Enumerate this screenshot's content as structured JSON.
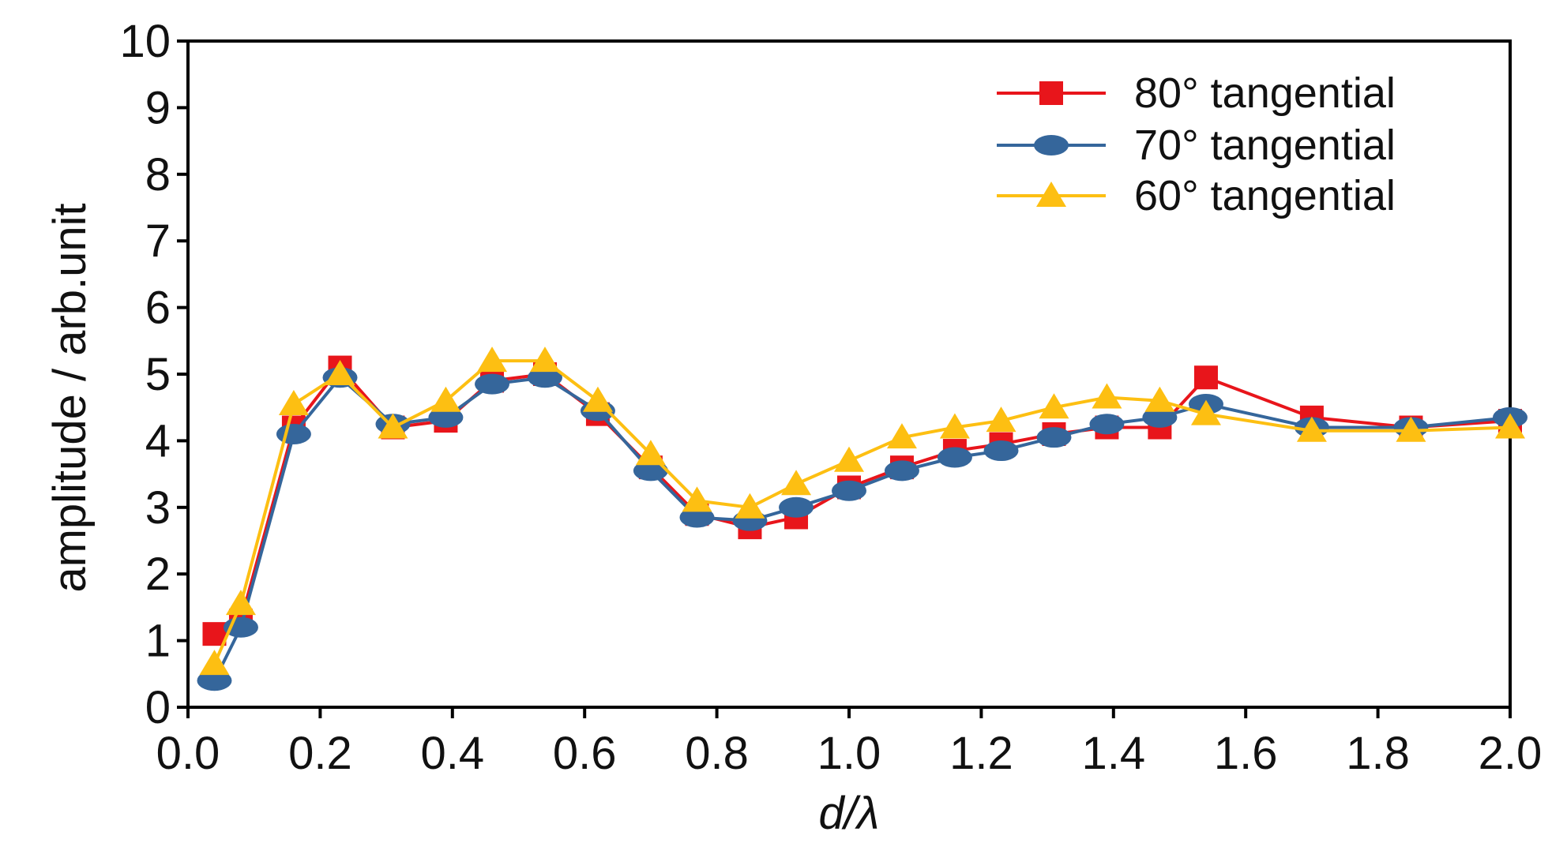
{
  "chart_data": {
    "type": "line",
    "title": "",
    "xlabel": "d/λ",
    "ylabel": "amplitude / arb.unit",
    "xlim": [
      0.0,
      2.0
    ],
    "ylim": [
      0,
      10
    ],
    "x_ticks": [
      "0.0",
      "0.2",
      "0.4",
      "0.6",
      "0.8",
      "1.0",
      "1.2",
      "1.4",
      "1.6",
      "1.8",
      "2.0"
    ],
    "y_ticks": [
      "0",
      "1",
      "2",
      "3",
      "4",
      "5",
      "6",
      "7",
      "8",
      "9",
      "10"
    ],
    "grid": false,
    "legend_position": "top-right",
    "series": [
      {
        "name": "80° tangential",
        "color": "#e8151b",
        "marker": "square",
        "x": [
          0.04,
          0.08,
          0.16,
          0.23,
          0.31,
          0.39,
          0.46,
          0.54,
          0.62,
          0.7,
          0.77,
          0.85,
          0.92,
          1.0,
          1.08,
          1.16,
          1.23,
          1.31,
          1.39,
          1.47,
          1.54,
          1.7,
          1.85,
          2.0
        ],
        "y": [
          1.1,
          1.3,
          4.2,
          5.1,
          4.2,
          4.3,
          4.9,
          5.0,
          4.4,
          3.6,
          2.9,
          2.7,
          2.85,
          3.3,
          3.6,
          3.85,
          3.95,
          4.1,
          4.2,
          4.2,
          4.95,
          4.35,
          4.2,
          4.3
        ]
      },
      {
        "name": "70° tangential",
        "color": "#35669b",
        "marker": "ellipse",
        "x": [
          0.04,
          0.08,
          0.16,
          0.23,
          0.31,
          0.39,
          0.46,
          0.54,
          0.62,
          0.7,
          0.77,
          0.85,
          0.92,
          1.0,
          1.08,
          1.16,
          1.23,
          1.31,
          1.39,
          1.47,
          1.54,
          1.7,
          1.85,
          2.0
        ],
        "y": [
          0.4,
          1.2,
          4.1,
          4.95,
          4.25,
          4.35,
          4.85,
          4.95,
          4.45,
          3.55,
          2.85,
          2.8,
          3.0,
          3.25,
          3.55,
          3.75,
          3.85,
          4.05,
          4.25,
          4.35,
          4.55,
          4.2,
          4.2,
          4.35
        ]
      },
      {
        "name": "60° tangential",
        "color": "#fdbf12",
        "marker": "triangle",
        "x": [
          0.04,
          0.08,
          0.16,
          0.23,
          0.31,
          0.39,
          0.46,
          0.54,
          0.62,
          0.7,
          0.77,
          0.85,
          0.92,
          1.0,
          1.08,
          1.16,
          1.23,
          1.31,
          1.39,
          1.47,
          1.54,
          1.7,
          1.85,
          2.0
        ],
        "y": [
          0.65,
          1.55,
          4.55,
          5.0,
          4.2,
          4.6,
          5.2,
          5.2,
          4.6,
          3.8,
          3.1,
          3.0,
          3.35,
          3.7,
          4.05,
          4.2,
          4.3,
          4.5,
          4.65,
          4.6,
          4.4,
          4.15,
          4.15,
          4.2
        ]
      }
    ]
  }
}
